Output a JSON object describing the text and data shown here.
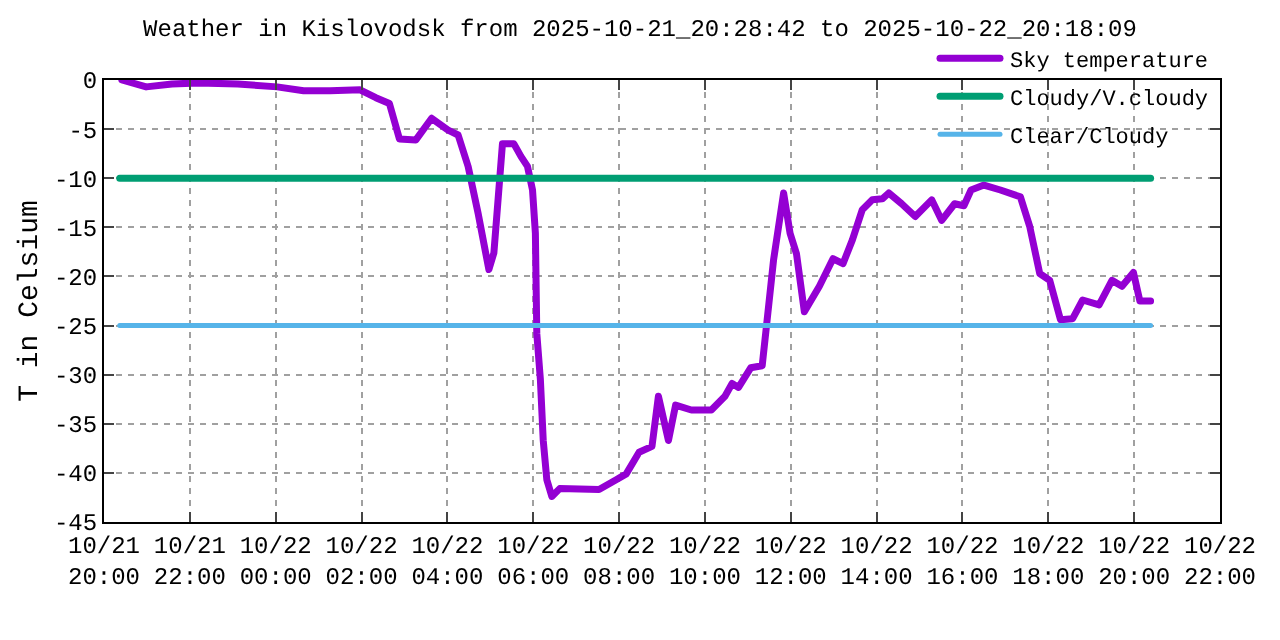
{
  "chart_data": {
    "type": "line",
    "title": "Weather in Kislovodsk from 2025-10-21_20:28:42 to 2025-10-22_20:18:09",
    "ylabel": "T in Celsium",
    "series": [
      {
        "name": "Sky temperature",
        "color": "#9400d3",
        "x": [
          "2025-10-21T20:25",
          "2025-10-21T20:59",
          "2025-10-21T21:35",
          "2025-10-21T22:12",
          "2025-10-21T23:07",
          "2025-10-22T00:02",
          "2025-10-22T00:39",
          "2025-10-22T01:16",
          "2025-10-22T01:58",
          "2025-10-22T02:20",
          "2025-10-22T02:39",
          "2025-10-22T02:53",
          "2025-10-22T03:16",
          "2025-10-22T03:38",
          "2025-10-22T04:01",
          "2025-10-22T04:15",
          "2025-10-22T04:29",
          "2025-10-22T04:43",
          "2025-10-22T04:58",
          "2025-10-22T05:05",
          "2025-10-22T05:17",
          "2025-10-22T05:33",
          "2025-10-22T05:43",
          "2025-10-22T05:52",
          "2025-10-22T05:59",
          "2025-10-22T06:03",
          "2025-10-22T06:05",
          "2025-10-22T06:10",
          "2025-10-22T06:14",
          "2025-10-22T06:19",
          "2025-10-22T06:26",
          "2025-10-22T06:37",
          "2025-10-22T07:32",
          "2025-10-22T07:56",
          "2025-10-22T08:10",
          "2025-10-22T08:28",
          "2025-10-22T08:46",
          "2025-10-22T08:55",
          "2025-10-22T09:09",
          "2025-10-22T09:19",
          "2025-10-22T09:41",
          "2025-10-22T10:09",
          "2025-10-22T10:28",
          "2025-10-22T10:38",
          "2025-10-22T10:47",
          "2025-10-22T11:04",
          "2025-10-22T11:20",
          "2025-10-22T11:27",
          "2025-10-22T11:36",
          "2025-10-22T11:50",
          "2025-10-22T11:59",
          "2025-10-22T12:08",
          "2025-10-22T12:19",
          "2025-10-22T12:40",
          "2025-10-22T12:59",
          "2025-10-22T13:13",
          "2025-10-22T13:26",
          "2025-10-22T13:40",
          "2025-10-22T13:54",
          "2025-10-22T14:08",
          "2025-10-22T14:17",
          "2025-10-22T14:35",
          "2025-10-22T14:54",
          "2025-10-22T15:17",
          "2025-10-22T15:31",
          "2025-10-22T15:49",
          "2025-10-22T16:02",
          "2025-10-22T16:12",
          "2025-10-22T16:30",
          "2025-10-22T16:53",
          "2025-10-22T17:21",
          "2025-10-22T17:34",
          "2025-10-22T17:48",
          "2025-10-22T18:02",
          "2025-10-22T18:17",
          "2025-10-22T18:34",
          "2025-10-22T18:48",
          "2025-10-22T19:11",
          "2025-10-22T19:29",
          "2025-10-22T19:43",
          "2025-10-22T19:59",
          "2025-10-22T20:08",
          "2025-10-22T20:23"
        ],
        "values": [
          0,
          -0.7,
          -0.4,
          -0.3,
          -0.4,
          -0.7,
          -1.1,
          -1.1,
          -1.0,
          -1.8,
          -2.4,
          -6.0,
          -6.1,
          -3.9,
          -5.1,
          -5.6,
          -8.8,
          -13.6,
          -19.3,
          -17.6,
          -6.5,
          -6.5,
          -7.8,
          -8.8,
          -11.2,
          -15.6,
          -25.8,
          -30.5,
          -36.7,
          -40.7,
          -42.4,
          -41.6,
          -41.7,
          -40.7,
          -40.1,
          -37.9,
          -37.3,
          -32.2,
          -36.7,
          -33.1,
          -33.6,
          -33.6,
          -32.2,
          -30.9,
          -31.3,
          -29.3,
          -29.1,
          -24.4,
          -18.3,
          -11.5,
          -15.6,
          -17.7,
          -23.6,
          -21.0,
          -18.2,
          -18.7,
          -16.3,
          -13.2,
          -12.2,
          -12.1,
          -11.5,
          -12.6,
          -13.9,
          -12.2,
          -14.3,
          -12.6,
          -12.8,
          -11.2,
          -10.7,
          -11.2,
          -11.9,
          -14.9,
          -19.7,
          -20.4,
          -24.4,
          -24.3,
          -22.4,
          -22.9,
          -20.4,
          -21.0,
          -19.6,
          -22.5,
          -22.5
        ]
      },
      {
        "name": "Cloudy/V.cloudy",
        "color": "#009e73",
        "x": [
          "2025-10-21T20:22",
          "2025-10-22T20:23"
        ],
        "values": [
          -10,
          -10
        ]
      },
      {
        "name": "Clear/Cloudy",
        "color": "#56b4e9",
        "x": [
          "2025-10-21T20:22",
          "2025-10-22T20:23"
        ],
        "values": [
          -25,
          -25
        ]
      }
    ],
    "xlim": [
      "2025-10-21T20:00",
      "2025-10-22T22:00"
    ],
    "xticks": [
      {
        "value": "2025-10-21T20:00",
        "label": "10/21\n20:00"
      },
      {
        "value": "2025-10-21T22:00",
        "label": "10/21\n22:00"
      },
      {
        "value": "2025-10-22T00:00",
        "label": "10/22\n00:00"
      },
      {
        "value": "2025-10-22T02:00",
        "label": "10/22\n02:00"
      },
      {
        "value": "2025-10-22T04:00",
        "label": "10/22\n04:00"
      },
      {
        "value": "2025-10-22T06:00",
        "label": "10/22\n06:00"
      },
      {
        "value": "2025-10-22T08:00",
        "label": "10/22\n08:00"
      },
      {
        "value": "2025-10-22T10:00",
        "label": "10/22\n10:00"
      },
      {
        "value": "2025-10-22T12:00",
        "label": "10/22\n12:00"
      },
      {
        "value": "2025-10-22T14:00",
        "label": "10/22\n14:00"
      },
      {
        "value": "2025-10-22T16:00",
        "label": "10/22\n16:00"
      },
      {
        "value": "2025-10-22T18:00",
        "label": "10/22\n18:00"
      },
      {
        "value": "2025-10-22T20:00",
        "label": "10/22\n20:00"
      },
      {
        "value": "2025-10-22T22:00",
        "label": "10/22\n22:00"
      }
    ],
    "ylim": [
      -45,
      0
    ],
    "yticks": [
      0,
      -5,
      -10,
      -15,
      -20,
      -25,
      -30,
      -35,
      -40,
      -45
    ],
    "grid": true,
    "legend": "top right",
    "marker": "none",
    "line_style": "solid"
  }
}
